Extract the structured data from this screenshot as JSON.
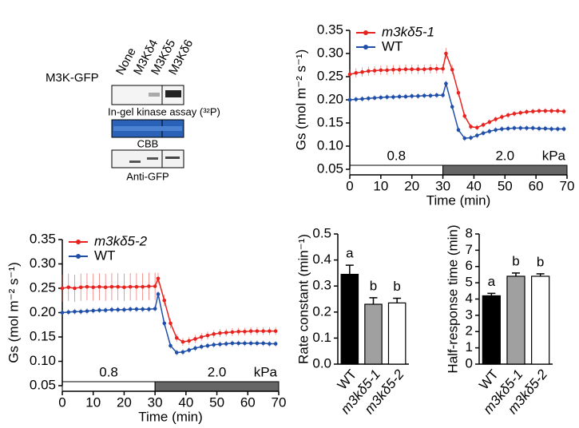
{
  "gel_panel": {
    "row_label": "M3K-GFP",
    "lanes": [
      "None",
      "M3Kδ4",
      "M3Kδ5",
      "M3Kδ6"
    ],
    "blots": [
      "In-gel kinase assay (³²P)",
      "CBB",
      "Anti-GFP"
    ]
  },
  "chart_data": [
    {
      "type": "line",
      "ylabel": "Gs (mol m⁻² s⁻¹)",
      "xlabel": "Time (min)",
      "x": [
        0,
        2,
        4,
        6,
        8,
        10,
        12,
        14,
        16,
        18,
        20,
        22,
        24,
        26,
        28,
        30,
        31,
        33,
        35,
        37,
        39,
        41,
        43,
        45,
        47,
        49,
        51,
        53,
        55,
        57,
        59,
        61,
        63,
        65,
        67,
        69
      ],
      "series": [
        {
          "name": "m3kδ5-1",
          "color": "#e8231f",
          "values": [
            0.255,
            0.258,
            0.26,
            0.262,
            0.263,
            0.264,
            0.264,
            0.265,
            0.265,
            0.266,
            0.266,
            0.266,
            0.266,
            0.267,
            0.267,
            0.267,
            0.3,
            0.265,
            0.215,
            0.165,
            0.142,
            0.14,
            0.146,
            0.152,
            0.158,
            0.163,
            0.167,
            0.17,
            0.172,
            0.174,
            0.175,
            0.176,
            0.176,
            0.176,
            0.176,
            0.175
          ],
          "errors": [
            0.01,
            0.01,
            0.01,
            0.01,
            0.01,
            0.01,
            0.01,
            0.01,
            0.01,
            0.01,
            0.01,
            0.01,
            0.01,
            0.01,
            0.01,
            0.01,
            0.012,
            0.01,
            0.008,
            0.007,
            0.006,
            0.006,
            0.006,
            0.006,
            0.006,
            0.006,
            0.006,
            0.006,
            0.006,
            0.006,
            0.006,
            0.006,
            0.006,
            0.006,
            0.006,
            0.006
          ]
        },
        {
          "name": "WT",
          "color": "#1f4fa8",
          "values": [
            0.2,
            0.201,
            0.202,
            0.203,
            0.204,
            0.205,
            0.206,
            0.206,
            0.207,
            0.207,
            0.208,
            0.208,
            0.209,
            0.209,
            0.21,
            0.21,
            0.235,
            0.185,
            0.135,
            0.117,
            0.118,
            0.123,
            0.128,
            0.132,
            0.135,
            0.137,
            0.138,
            0.139,
            0.139,
            0.139,
            0.139,
            0.138,
            0.138,
            0.137,
            0.137,
            0.137
          ],
          "errors": [
            0.006,
            0.006,
            0.006,
            0.006,
            0.006,
            0.006,
            0.006,
            0.006,
            0.006,
            0.006,
            0.006,
            0.006,
            0.006,
            0.006,
            0.006,
            0.006,
            0.006,
            0.006,
            0.006,
            0.006,
            0.006,
            0.006,
            0.006,
            0.006,
            0.006,
            0.006,
            0.006,
            0.006,
            0.006,
            0.006,
            0.006,
            0.006,
            0.006,
            0.006,
            0.006,
            0.006
          ]
        }
      ],
      "xlim": [
        0,
        70
      ],
      "xticks": [
        0,
        10,
        20,
        30,
        40,
        50,
        60,
        70
      ],
      "ylim": [
        0.05,
        0.35
      ],
      "yticks": [
        {
          "value": 0.05,
          "label": "0.05"
        },
        {
          "value": 0.1,
          "label": "0.10"
        },
        0.15,
        {
          "value": 0.2,
          "label": "0.20"
        },
        0.25,
        {
          "value": 0.3,
          "label": "0.30"
        },
        0.35
      ],
      "vpd_steps": [
        {
          "label": "0.8",
          "start": 0,
          "end": 30
        },
        {
          "label": "2.0",
          "start": 30,
          "end": 70
        }
      ],
      "vpd_unit": "kPa",
      "legend": "upper left"
    },
    {
      "type": "line",
      "ylabel": "Gs (mol m⁻² s⁻¹)",
      "xlabel": "Time (min)",
      "x": [
        0,
        2,
        4,
        6,
        8,
        10,
        12,
        14,
        16,
        18,
        20,
        22,
        24,
        26,
        28,
        30,
        31,
        33,
        35,
        37,
        39,
        41,
        43,
        45,
        47,
        49,
        51,
        53,
        55,
        57,
        59,
        61,
        63,
        65,
        67,
        69
      ],
      "series": [
        {
          "name": "m3kδ5-2",
          "color": "#e8231f",
          "values": [
            0.25,
            0.252,
            0.25,
            0.252,
            0.253,
            0.252,
            0.253,
            0.252,
            0.253,
            0.253,
            0.252,
            0.253,
            0.253,
            0.253,
            0.254,
            0.254,
            0.27,
            0.225,
            0.178,
            0.148,
            0.14,
            0.142,
            0.146,
            0.15,
            0.153,
            0.156,
            0.158,
            0.159,
            0.16,
            0.161,
            0.161,
            0.162,
            0.162,
            0.162,
            0.162,
            0.162
          ],
          "errors": [
            0.028,
            0.028,
            0.028,
            0.028,
            0.028,
            0.028,
            0.028,
            0.028,
            0.028,
            0.028,
            0.028,
            0.028,
            0.028,
            0.028,
            0.028,
            0.028,
            0.012,
            0.012,
            0.01,
            0.008,
            0.008,
            0.008,
            0.008,
            0.008,
            0.008,
            0.008,
            0.008,
            0.008,
            0.008,
            0.008,
            0.008,
            0.008,
            0.008,
            0.008,
            0.008,
            0.008
          ]
        },
        {
          "name": "WT",
          "color": "#1f4fa8",
          "values": [
            0.2,
            0.201,
            0.202,
            0.202,
            0.203,
            0.204,
            0.205,
            0.205,
            0.206,
            0.206,
            0.206,
            0.207,
            0.207,
            0.207,
            0.207,
            0.208,
            0.238,
            0.178,
            0.132,
            0.118,
            0.119,
            0.123,
            0.127,
            0.13,
            0.132,
            0.134,
            0.135,
            0.136,
            0.137,
            0.137,
            0.137,
            0.137,
            0.137,
            0.137,
            0.136,
            0.136
          ],
          "errors": [
            0.006,
            0.006,
            0.006,
            0.006,
            0.006,
            0.006,
            0.006,
            0.006,
            0.006,
            0.006,
            0.006,
            0.006,
            0.006,
            0.006,
            0.006,
            0.006,
            0.006,
            0.006,
            0.006,
            0.006,
            0.006,
            0.006,
            0.006,
            0.006,
            0.006,
            0.006,
            0.006,
            0.006,
            0.006,
            0.006,
            0.006,
            0.006,
            0.006,
            0.006,
            0.006,
            0.006
          ]
        }
      ],
      "xlim": [
        0,
        70
      ],
      "xticks": [
        0,
        10,
        20,
        30,
        40,
        50,
        60,
        70
      ],
      "ylim": [
        0.05,
        0.35
      ],
      "yticks": [
        {
          "value": 0.05,
          "label": "0.05"
        },
        {
          "value": 0.1,
          "label": "0.10"
        },
        0.15,
        {
          "value": 0.2,
          "label": "0.20"
        },
        0.25,
        {
          "value": 0.3,
          "label": "0.30"
        },
        0.35
      ],
      "vpd_steps": [
        {
          "label": "0.8",
          "start": 0,
          "end": 30
        },
        {
          "label": "2.0",
          "start": 30,
          "end": 70
        }
      ],
      "vpd_unit": "kPa",
      "legend": "upper left"
    },
    {
      "type": "bar",
      "ylabel": "Rate constant (min⁻¹)",
      "categories": [
        "WT",
        "m3kδ5-1",
        "m3kδ5-2"
      ],
      "values": [
        0.345,
        0.23,
        0.235
      ],
      "errors": [
        0.035,
        0.025,
        0.018
      ],
      "significance": [
        "a",
        "b",
        "b"
      ],
      "colors": [
        "#000000",
        "#a0a0a0",
        "#ffffff"
      ],
      "ylim": [
        0,
        0.5
      ],
      "yticks": [
        {
          "value": 0,
          "label": "0.0"
        },
        0.1,
        0.2,
        0.3,
        0.4,
        0.5
      ]
    },
    {
      "type": "bar",
      "ylabel": "Half-response time (min)",
      "categories": [
        "WT",
        "m3kδ5-1",
        "m3kδ5-2"
      ],
      "values": [
        4.2,
        5.4,
        5.4
      ],
      "errors": [
        0.15,
        0.2,
        0.15
      ],
      "significance": [
        "a",
        "b",
        "b"
      ],
      "colors": [
        "#000000",
        "#a0a0a0",
        "#ffffff"
      ],
      "ylim": [
        0,
        8
      ],
      "yticks": [
        0,
        1,
        2,
        3,
        4,
        5,
        6,
        7,
        8
      ]
    }
  ]
}
